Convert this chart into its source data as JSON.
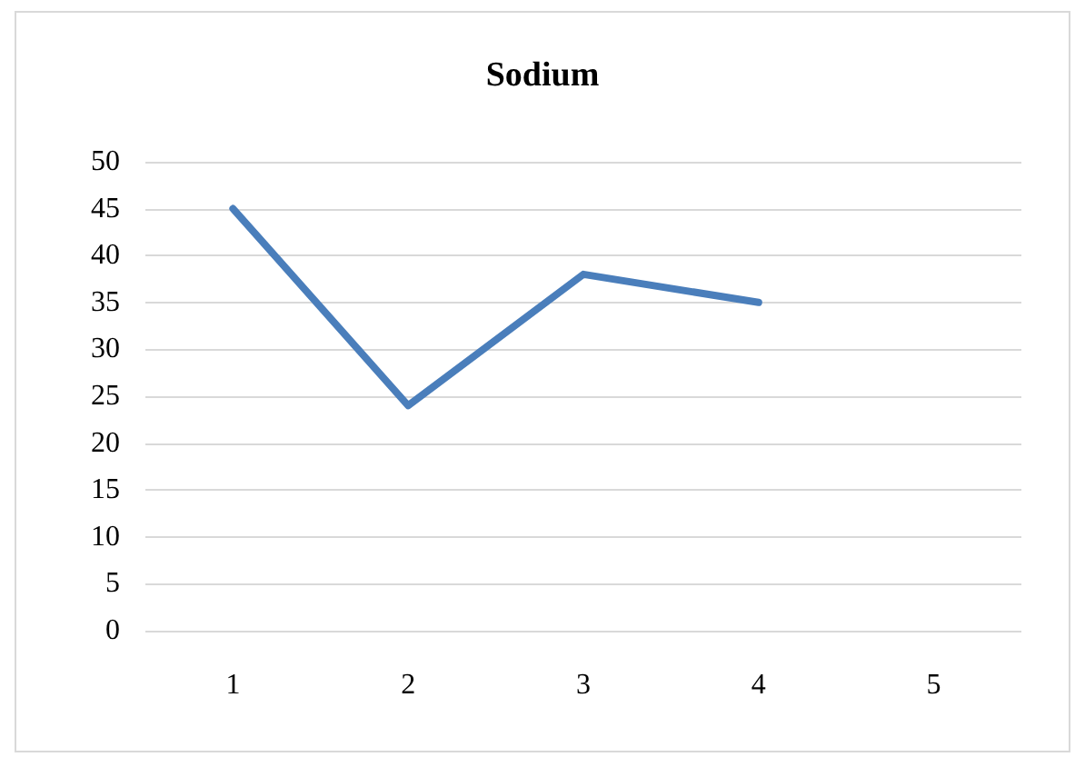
{
  "chart_data": {
    "type": "line",
    "title": "Sodium",
    "categories": [
      "1",
      "2",
      "3",
      "4",
      "5"
    ],
    "series": [
      {
        "color": "#4a7ebb",
        "values": [
          45,
          24,
          38,
          35,
          null
        ]
      }
    ],
    "ylim": [
      0,
      50
    ],
    "yticks": [
      0,
      5,
      10,
      15,
      20,
      25,
      30,
      35,
      40,
      45,
      50
    ],
    "grid": "y",
    "marker": "none",
    "line_style": "solid"
  }
}
